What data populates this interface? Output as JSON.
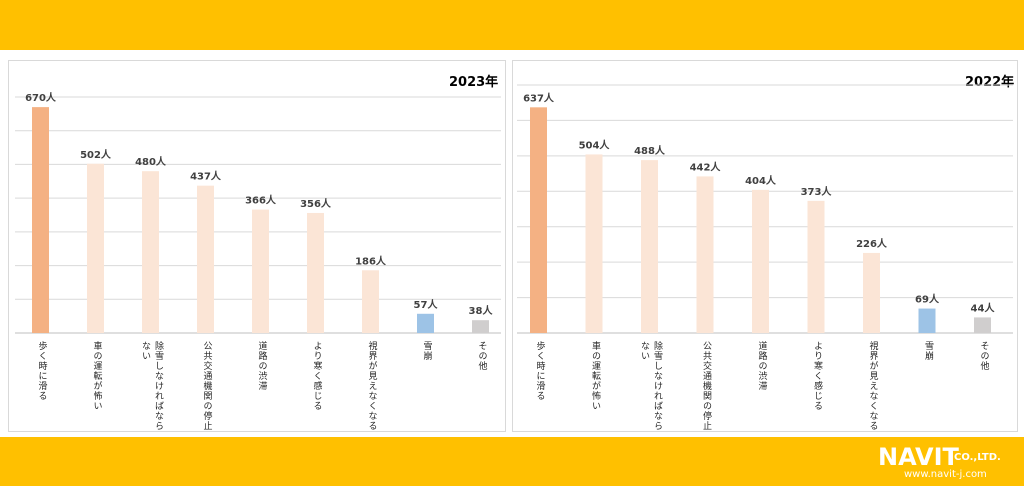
{
  "brand": {
    "logo_main": "NAVIT",
    "logo_suffix": "CO.,LTD.",
    "url": "www.navit-j.com"
  },
  "colors": {
    "band": "#ffc000",
    "bar_top": "#f4b183",
    "bar_other": "#fbe5d6",
    "bar_snow": "#9dc3e6",
    "bar_misc": "#d0cece",
    "grid": "#d9d9d9"
  },
  "chart_data": [
    {
      "type": "bar",
      "title": "2023年",
      "categories": [
        "歩く時に滑る",
        "車の運転が怖い",
        "除雪しなければならない",
        "公共交通機関の停止",
        "道路の渋滞",
        "より寒く感じる",
        "視界が見えなくなる",
        "雪崩",
        "その他"
      ],
      "category_lines": [
        [
          "歩く時に滑る"
        ],
        [
          "車の運転が怖い"
        ],
        [
          "除雪しなければなら",
          "ない"
        ],
        [
          "公共交通機関の停止"
        ],
        [
          "道路の渋滞"
        ],
        [
          "より寒く感じる"
        ],
        [
          "視界が見えなくなる"
        ],
        [
          "雪崩"
        ],
        [
          "その他"
        ]
      ],
      "values": [
        670,
        502,
        480,
        437,
        366,
        356,
        186,
        57,
        38
      ],
      "value_labels": [
        "670人",
        "502人",
        "480人",
        "437人",
        "366人",
        "356人",
        "186人",
        "57人",
        "38人"
      ],
      "bar_colors": [
        "#f4b183",
        "#fbe5d6",
        "#fbe5d6",
        "#fbe5d6",
        "#fbe5d6",
        "#fbe5d6",
        "#fbe5d6",
        "#9dc3e6",
        "#d0cece"
      ],
      "ylim": [
        0,
        700
      ],
      "y_gridline_step": 100,
      "grid": true,
      "xlabel": "",
      "ylabel": ""
    },
    {
      "type": "bar",
      "title": "2022年",
      "categories": [
        "歩く時に滑る",
        "車の運転が怖い",
        "除雪しなければならない",
        "公共交通機関の停止",
        "道路の渋滞",
        "より寒く感じる",
        "視界が見えなくなる",
        "雪崩",
        "その他"
      ],
      "category_lines": [
        [
          "歩く時に滑る"
        ],
        [
          "車の運転が怖い"
        ],
        [
          "除雪しなければなら",
          "ない"
        ],
        [
          "公共交通機関の停止"
        ],
        [
          "道路の渋滞"
        ],
        [
          "より寒く感じる"
        ],
        [
          "視界が見えなくなる"
        ],
        [
          "雪崩"
        ],
        [
          "その他"
        ]
      ],
      "values": [
        637,
        504,
        488,
        442,
        404,
        373,
        226,
        69,
        44
      ],
      "value_labels": [
        "637人",
        "504人",
        "488人",
        "442人",
        "404人",
        "373人",
        "226人",
        "69人",
        "44人"
      ],
      "bar_colors": [
        "#f4b183",
        "#fbe5d6",
        "#fbe5d6",
        "#fbe5d6",
        "#fbe5d6",
        "#fbe5d6",
        "#fbe5d6",
        "#9dc3e6",
        "#d0cece"
      ],
      "ylim": [
        0,
        700
      ],
      "y_gridline_step": 100,
      "grid": true,
      "xlabel": "",
      "ylabel": ""
    }
  ]
}
